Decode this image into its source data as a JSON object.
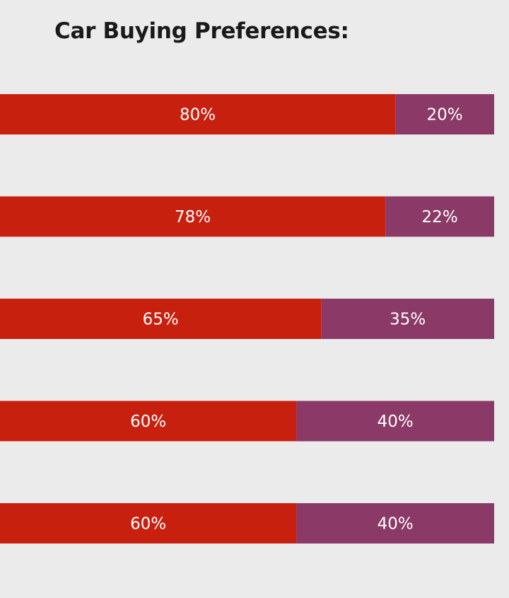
{
  "title": "Car Buying Preferences:",
  "colors": {
    "background": "#ebebeb",
    "series_1": "#c8200f",
    "series_2": "#8b3a68",
    "label_text": "#ffffff"
  },
  "chart_data": {
    "type": "bar",
    "orientation": "horizontal",
    "stacked": true,
    "title": "Car Buying Preferences:",
    "xlabel": "",
    "ylabel": "",
    "xlim": [
      0,
      100
    ],
    "categories": [
      "",
      "",
      "",
      "",
      ""
    ],
    "series": [
      {
        "name": "",
        "values": [
          80,
          78,
          65,
          60,
          60
        ],
        "labels": [
          "80%",
          "78%",
          "65%",
          "60%",
          "60%"
        ]
      },
      {
        "name": "",
        "values": [
          20,
          22,
          35,
          40,
          40
        ],
        "labels": [
          "20%",
          "22%",
          "35%",
          "40%",
          "40%"
        ]
      }
    ]
  }
}
